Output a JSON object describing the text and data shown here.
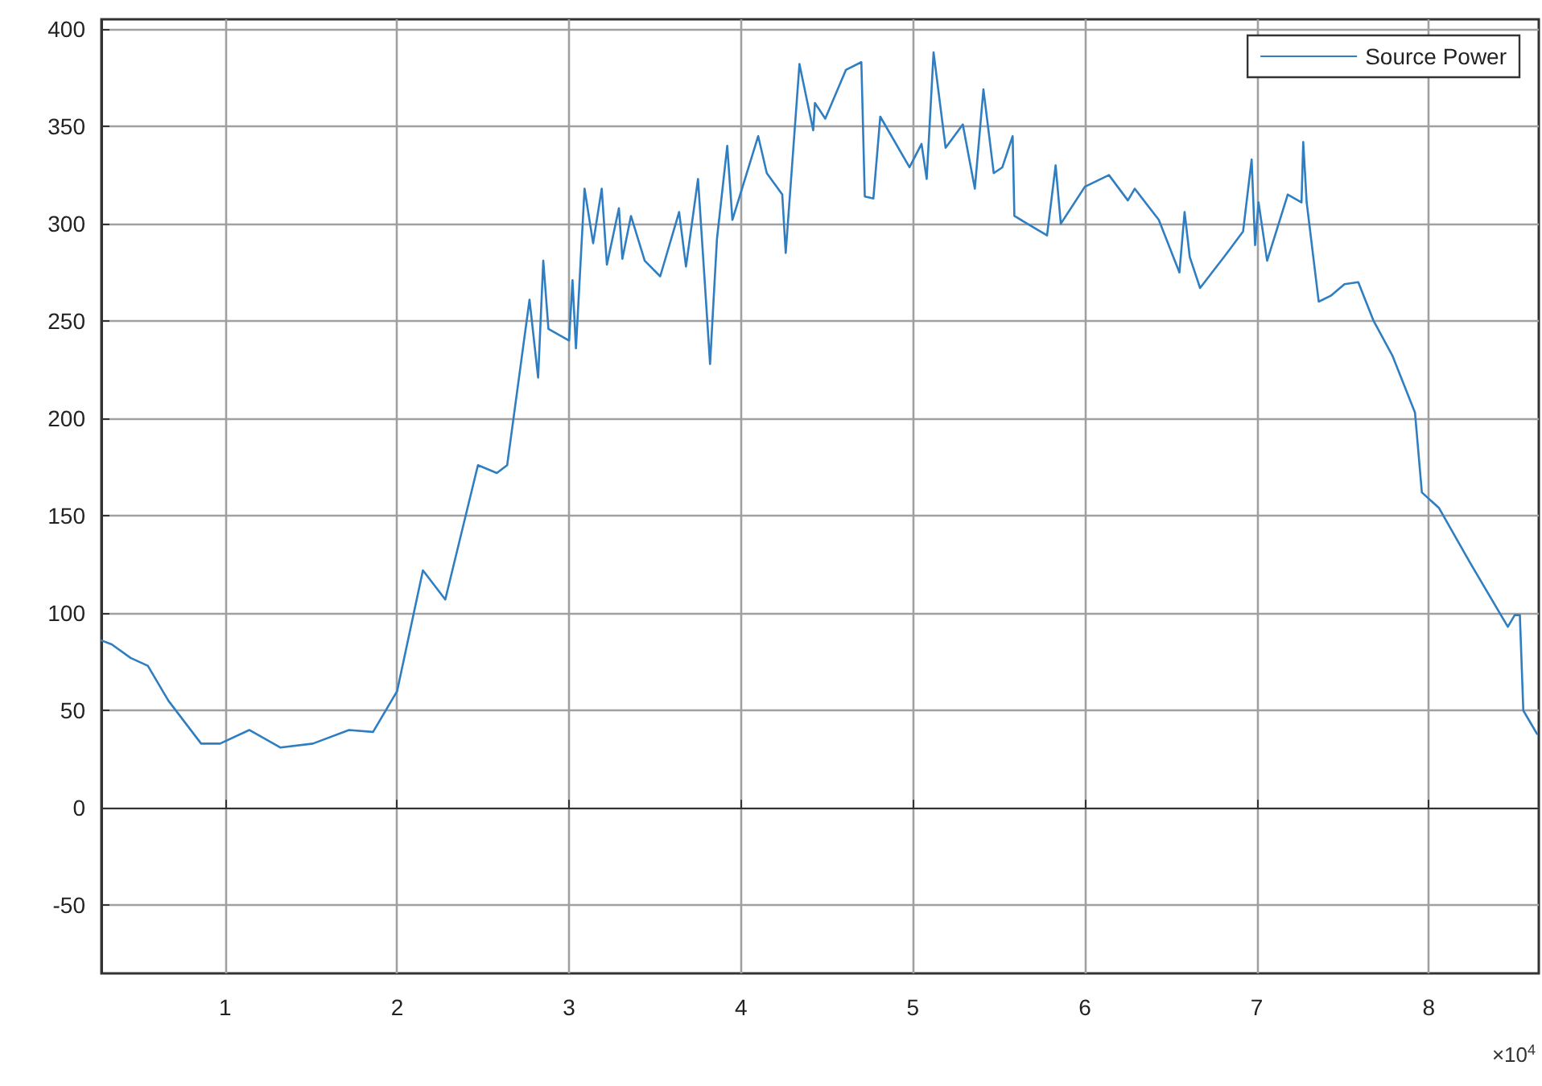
{
  "chart_data": {
    "type": "line",
    "x": [
      0.28,
      0.34,
      0.45,
      0.55,
      0.67,
      0.86,
      0.97,
      1.14,
      1.32,
      1.51,
      1.72,
      1.86,
      2.0,
      2.15,
      2.28,
      2.47,
      2.58,
      2.64,
      2.77,
      2.82,
      2.85,
      2.88,
      3.0,
      3.02,
      3.04,
      3.09,
      3.14,
      3.19,
      3.22,
      3.29,
      3.31,
      3.36,
      3.44,
      3.53,
      3.64,
      3.68,
      3.75,
      3.79,
      3.82,
      3.86,
      3.92,
      3.95,
      4.1,
      4.15,
      4.24,
      4.26,
      4.34,
      4.42,
      4.43,
      4.49,
      4.61,
      4.7,
      4.72,
      4.77,
      4.81,
      4.98,
      5.05,
      5.08,
      5.12,
      5.19,
      5.29,
      5.36,
      5.41,
      5.47,
      5.52,
      5.58,
      5.59,
      5.78,
      5.83,
      5.86,
      6.0,
      6.14,
      6.25,
      6.29,
      6.43,
      6.55,
      6.58,
      6.61,
      6.67,
      6.81,
      6.92,
      6.97,
      6.99,
      7.01,
      7.06,
      7.18,
      7.26,
      7.27,
      7.29,
      7.36,
      7.43,
      7.51,
      7.59,
      7.68,
      7.79,
      7.92,
      7.96,
      8.06,
      8.24,
      8.46,
      8.5,
      8.53,
      8.55,
      8.63
    ],
    "series": [
      {
        "name": "Source Power",
        "color": "#2f7ec1",
        "values": [
          86,
          84,
          77,
          73,
          55,
          33,
          33,
          40,
          31,
          33,
          40,
          39,
          60,
          122,
          107,
          176,
          172,
          176,
          261,
          221,
          281,
          246,
          240,
          271,
          236,
          318,
          290,
          318,
          279,
          308,
          282,
          304,
          281,
          273,
          306,
          278,
          323,
          269,
          228,
          292,
          340,
          302,
          345,
          326,
          315,
          285,
          382,
          348,
          362,
          354,
          379,
          383,
          314,
          313,
          355,
          329,
          341,
          323,
          388,
          339,
          351,
          318,
          369,
          326,
          329,
          345,
          304,
          294,
          330,
          300,
          319,
          325,
          312,
          318,
          302,
          275,
          306,
          283,
          267,
          283,
          296,
          333,
          289,
          311,
          281,
          315,
          311,
          342,
          311,
          260,
          263,
          269,
          270,
          250,
          232,
          203,
          162,
          154,
          126,
          93,
          99,
          99,
          50,
          38
        ]
      }
    ],
    "xlim": [
      0.28,
      8.64
    ],
    "xticks": [
      1,
      2,
      3,
      4,
      5,
      6,
      7,
      8
    ],
    "ylim": [
      -85,
      405
    ],
    "yticks": [
      -50,
      0,
      50,
      100,
      150,
      200,
      250,
      300,
      350,
      400
    ],
    "annotations": [
      "×10$^{4}$"
    ],
    "grid": true,
    "legend": "top right",
    "marker": "none",
    "line_style": "solid"
  }
}
